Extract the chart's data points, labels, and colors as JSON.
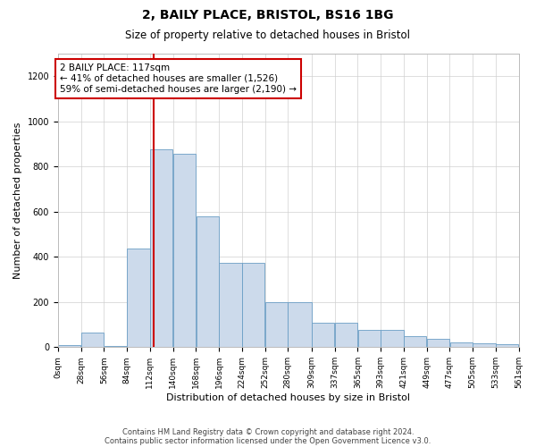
{
  "title_line1": "2, BAILY PLACE, BRISTOL, BS16 1BG",
  "title_line2": "Size of property relative to detached houses in Bristol",
  "xlabel": "Distribution of detached houses by size in Bristol",
  "ylabel": "Number of detached properties",
  "annotation_text": "2 BAILY PLACE: 117sqm\n← 41% of detached houses are smaller (1,526)\n59% of semi-detached houses are larger (2,190) →",
  "bar_color": "#ccdaeb",
  "bar_edge_color": "#6a9ec5",
  "vline_color": "#cc0000",
  "vline_x": 117,
  "bin_edges": [
    0,
    28,
    56,
    84,
    112,
    140,
    168,
    196,
    224,
    252,
    280,
    309,
    337,
    365,
    393,
    421,
    449,
    477,
    505,
    533,
    561
  ],
  "bar_heights": [
    8,
    63,
    5,
    438,
    875,
    858,
    578,
    373,
    373,
    198,
    198,
    108,
    108,
    78,
    78,
    48,
    38,
    23,
    18,
    13
  ],
  "tick_labels": [
    "0sqm",
    "28sqm",
    "56sqm",
    "84sqm",
    "112sqm",
    "140sqm",
    "168sqm",
    "196sqm",
    "224sqm",
    "252sqm",
    "280sqm",
    "309sqm",
    "337sqm",
    "365sqm",
    "393sqm",
    "421sqm",
    "449sqm",
    "477sqm",
    "505sqm",
    "533sqm",
    "561sqm"
  ],
  "ylim": [
    0,
    1300
  ],
  "xlim": [
    0,
    561
  ],
  "yticks": [
    0,
    200,
    400,
    600,
    800,
    1000,
    1200
  ],
  "footnote1": "Contains HM Land Registry data © Crown copyright and database right 2024.",
  "footnote2": "Contains public sector information licensed under the Open Government Licence v3.0.",
  "background_color": "#ffffff",
  "grid_color": "#d0d0d0",
  "title_fontsize": 10,
  "subtitle_fontsize": 8.5,
  "tick_fontsize": 6.5,
  "axis_label_fontsize": 8,
  "footnote_fontsize": 6,
  "annot_fontsize": 7.5
}
